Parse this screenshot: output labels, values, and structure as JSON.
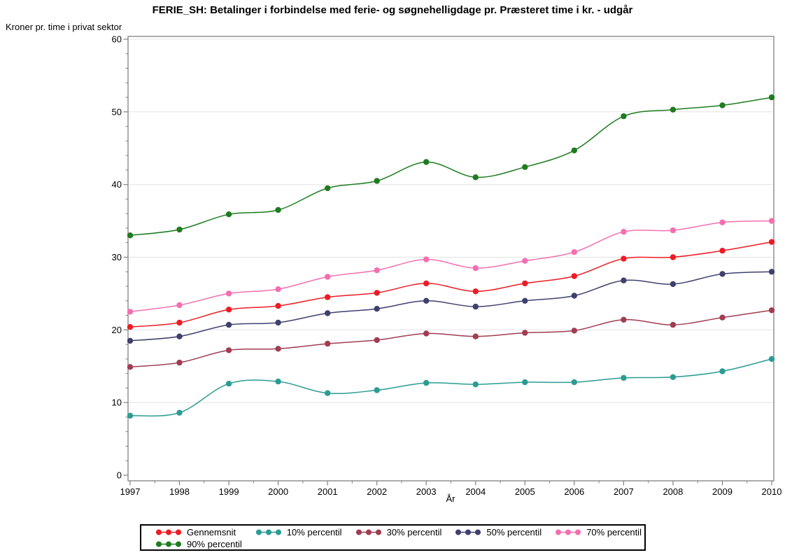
{
  "chart_data": {
    "type": "line",
    "title": "FERIE_SH: Betalinger i forbindelse med ferie- og søgnehelligdage pr. Præsteret time i kr. - udgår",
    "ylabel": "Kroner pr. time i privat sektor",
    "xlabel": "År",
    "x": [
      1997,
      1998,
      1999,
      2000,
      2001,
      2002,
      2003,
      2004,
      2005,
      2006,
      2007,
      2008,
      2009,
      2010
    ],
    "ylim": [
      0,
      60
    ],
    "yticks": [
      0,
      10,
      20,
      30,
      40,
      50,
      60
    ],
    "yminor_step": 2,
    "xminor_step": 0.5,
    "grid": true,
    "legend_position": "bottom",
    "marker": "circle",
    "line_style": "smooth",
    "series": [
      {
        "name": "Gennemsnit",
        "color": "#ed1c24",
        "values": [
          20.4,
          21.0,
          22.8,
          23.3,
          24.5,
          25.1,
          26.4,
          25.3,
          26.4,
          27.4,
          29.8,
          30.0,
          30.9,
          32.1
        ]
      },
      {
        "name": "10% percentil",
        "color": "#2b9c92",
        "values": [
          8.2,
          8.6,
          12.6,
          12.9,
          11.3,
          11.7,
          12.7,
          12.5,
          12.8,
          12.8,
          13.4,
          13.5,
          14.3,
          16.0
        ]
      },
      {
        "name": "30% percentil",
        "color": "#a03d52",
        "values": [
          14.9,
          15.5,
          17.2,
          17.4,
          18.1,
          18.6,
          19.5,
          19.1,
          19.6,
          19.9,
          21.4,
          20.7,
          21.7,
          22.7
        ]
      },
      {
        "name": "50% percentil",
        "color": "#40406e",
        "values": [
          18.5,
          19.1,
          20.7,
          21.0,
          22.3,
          22.9,
          24.0,
          23.2,
          24.0,
          24.7,
          26.8,
          26.3,
          27.7,
          28.0
        ]
      },
      {
        "name": "70% percentil",
        "color": "#f46fb0",
        "values": [
          22.5,
          23.4,
          25.0,
          25.6,
          27.3,
          28.2,
          29.7,
          28.5,
          29.5,
          30.7,
          33.5,
          33.7,
          34.8,
          35.0
        ]
      },
      {
        "name": "90% percentil",
        "color": "#1e7c1f",
        "values": [
          33.0,
          33.8,
          35.9,
          36.5,
          39.5,
          40.5,
          43.1,
          41.0,
          42.4,
          44.7,
          49.4,
          50.3,
          50.9,
          52.0
        ]
      }
    ],
    "colors": {
      "grid": "#e3e3e3",
      "frame": "#808080",
      "text": "#000000",
      "background": "#ffffff"
    }
  }
}
